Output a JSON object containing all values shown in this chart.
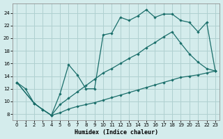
{
  "xlabel": "Humidex (Indice chaleur)",
  "background_color": "#d4ecec",
  "grid_color": "#afd0d0",
  "line_color": "#1a6e6a",
  "xlim": [
    -0.5,
    23.5
  ],
  "ylim": [
    7,
    25.5
  ],
  "xticks": [
    0,
    1,
    2,
    3,
    4,
    5,
    6,
    7,
    8,
    9,
    10,
    11,
    12,
    13,
    14,
    15,
    16,
    17,
    18,
    19,
    20,
    21,
    22,
    23
  ],
  "yticks": [
    8,
    10,
    12,
    14,
    16,
    18,
    20,
    22,
    24
  ],
  "line1_x": [
    0,
    1,
    2,
    3,
    4,
    5,
    6,
    7,
    8,
    9,
    10,
    11,
    12,
    13,
    14,
    15,
    16,
    17,
    18,
    19,
    20,
    21,
    22,
    23
  ],
  "line1_y": [
    13,
    12,
    9.7,
    8.7,
    7.8,
    11.2,
    15.8,
    14.2,
    12,
    12,
    20.5,
    20.8,
    23.3,
    22.8,
    23.5,
    24.5,
    23.3,
    23.8,
    23.8,
    22.8,
    22.5,
    21,
    22.5,
    14.8
  ],
  "line2_x": [
    0,
    2,
    3,
    4,
    5,
    6,
    7,
    8,
    9,
    10,
    11,
    12,
    13,
    14,
    15,
    16,
    17,
    18,
    19,
    20,
    21,
    22,
    23
  ],
  "line2_y": [
    13,
    9.7,
    8.7,
    7.8,
    9.5,
    10.5,
    11.5,
    12.5,
    13.5,
    14.5,
    15.2,
    16.0,
    16.8,
    17.5,
    18.5,
    19.3,
    20.2,
    21.0,
    19.2,
    17.5,
    16.2,
    15.2,
    14.8
  ],
  "line3_x": [
    0,
    2,
    3,
    4,
    5,
    6,
    7,
    8,
    9,
    10,
    11,
    12,
    13,
    14,
    15,
    16,
    17,
    18,
    19,
    20,
    21,
    22,
    23
  ],
  "line3_y": [
    13,
    9.7,
    8.7,
    7.8,
    8.2,
    8.8,
    9.2,
    9.5,
    9.8,
    10.2,
    10.6,
    11.0,
    11.4,
    11.8,
    12.2,
    12.6,
    13.0,
    13.4,
    13.8,
    14.0,
    14.2,
    14.5,
    14.8
  ]
}
